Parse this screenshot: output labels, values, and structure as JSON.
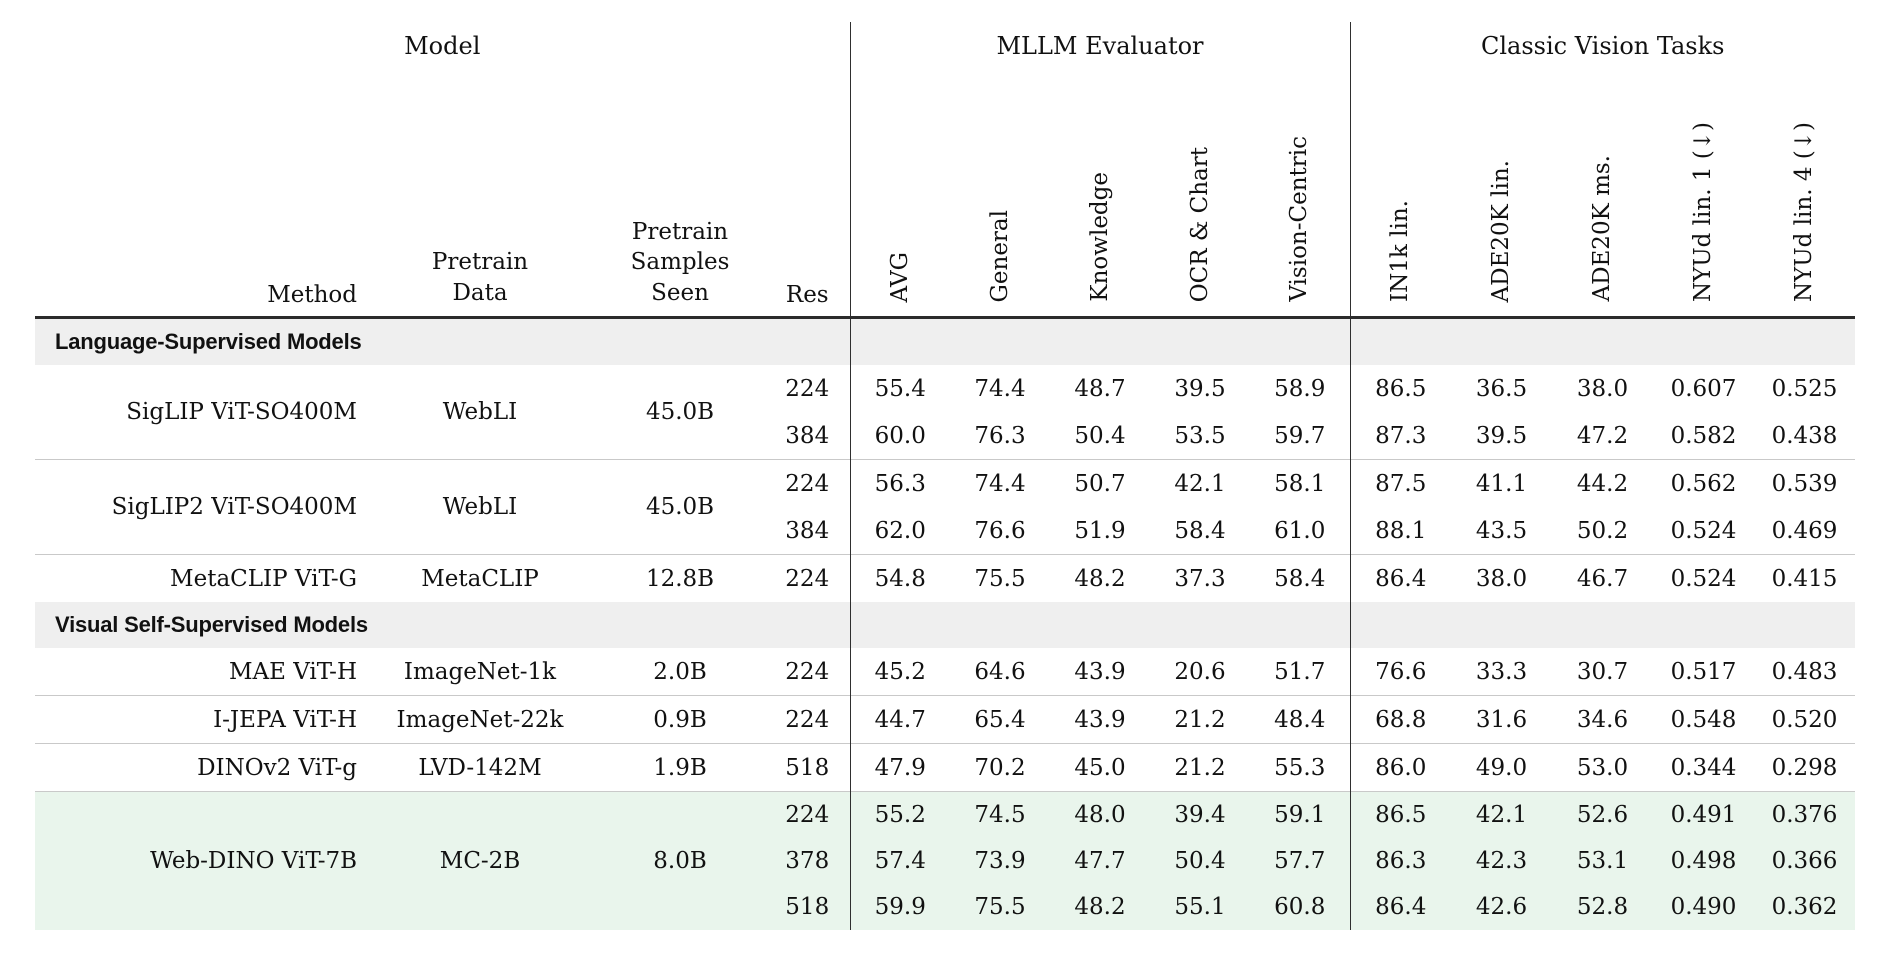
{
  "colors": {
    "highlight_row_green": "#e9f5ec",
    "section_row_gray": "#efefef",
    "header_rule_dark": "#2b2b2b",
    "group_rule_light": "#c9c9c9"
  },
  "table": {
    "group_headers": [
      {
        "label": "Model"
      },
      {
        "label": "MLLM Evaluator"
      },
      {
        "label": "Classic Vision Tasks"
      }
    ],
    "col_headers": {
      "method": "Method",
      "pretrain_data": [
        "Pretrain",
        "Data"
      ],
      "pretrain_samples": [
        "Pretrain",
        "Samples",
        "Seen"
      ],
      "res": "Res",
      "mllm": [
        "AVG",
        "General",
        "Knowledge",
        "OCR & Chart",
        "Vision-Centric"
      ],
      "classic": [
        "IN1k lin.",
        "ADE20K lin.",
        "ADE20K ms.",
        "NYUd lin. 1 (↓)",
        "NYUd lin. 4 (↓)"
      ]
    },
    "section_titles": [
      "Language-Supervised Models",
      "Visual Self-Supervised Models"
    ],
    "rows": [
      {
        "method": "SigLIP ViT-SO400M",
        "pretrain_data": "WebLI",
        "samples": "45.0B",
        "res": "224",
        "vals": [
          "55.4",
          "74.4",
          "48.7",
          "39.5",
          "58.9",
          "86.5",
          "36.5",
          "38.0",
          "0.607",
          "0.525"
        ]
      },
      {
        "res": "384",
        "vals": [
          "60.0",
          "76.3",
          "50.4",
          "53.5",
          "59.7",
          "87.3",
          "39.5",
          "47.2",
          "0.582",
          "0.438"
        ]
      },
      {
        "method": "SigLIP2 ViT-SO400M",
        "pretrain_data": "WebLI",
        "samples": "45.0B",
        "res": "224",
        "vals": [
          "56.3",
          "74.4",
          "50.7",
          "42.1",
          "58.1",
          "87.5",
          "41.1",
          "44.2",
          "0.562",
          "0.539"
        ]
      },
      {
        "res": "384",
        "vals": [
          "62.0",
          "76.6",
          "51.9",
          "58.4",
          "61.0",
          "88.1",
          "43.5",
          "50.2",
          "0.524",
          "0.469"
        ]
      },
      {
        "method": "MetaCLIP ViT-G",
        "pretrain_data": "MetaCLIP",
        "samples": "12.8B",
        "res": "224",
        "vals": [
          "54.8",
          "75.5",
          "48.2",
          "37.3",
          "58.4",
          "86.4",
          "38.0",
          "46.7",
          "0.524",
          "0.415"
        ]
      },
      {
        "method": "MAE ViT-H",
        "pretrain_data": "ImageNet-1k",
        "samples": "2.0B",
        "res": "224",
        "vals": [
          "45.2",
          "64.6",
          "43.9",
          "20.6",
          "51.7",
          "76.6",
          "33.3",
          "30.7",
          "0.517",
          "0.483"
        ]
      },
      {
        "method": "I-JEPA ViT-H",
        "pretrain_data": "ImageNet-22k",
        "samples": "0.9B",
        "res": "224",
        "vals": [
          "44.7",
          "65.4",
          "43.9",
          "21.2",
          "48.4",
          "68.8",
          "31.6",
          "34.6",
          "0.548",
          "0.520"
        ]
      },
      {
        "method": "DINOv2 ViT-g",
        "pretrain_data": "LVD-142M",
        "samples": "1.9B",
        "res": "518",
        "vals": [
          "47.9",
          "70.2",
          "45.0",
          "21.2",
          "55.3",
          "86.0",
          "49.0",
          "53.0",
          "0.344",
          "0.298"
        ]
      },
      {
        "method": "Web-DINO ViT-7B",
        "pretrain_data": "MC-2B",
        "samples": "8.0B",
        "res": "224",
        "vals": [
          "55.2",
          "74.5",
          "48.0",
          "39.4",
          "59.1",
          "86.5",
          "42.1",
          "52.6",
          "0.491",
          "0.376"
        ]
      },
      {
        "res": "378",
        "vals": [
          "57.4",
          "73.9",
          "47.7",
          "50.4",
          "57.7",
          "86.3",
          "42.3",
          "53.1",
          "0.498",
          "0.366"
        ]
      },
      {
        "res": "518",
        "vals": [
          "59.9",
          "75.5",
          "48.2",
          "55.1",
          "60.8",
          "86.4",
          "42.6",
          "52.8",
          "0.490",
          "0.362"
        ]
      }
    ]
  }
}
